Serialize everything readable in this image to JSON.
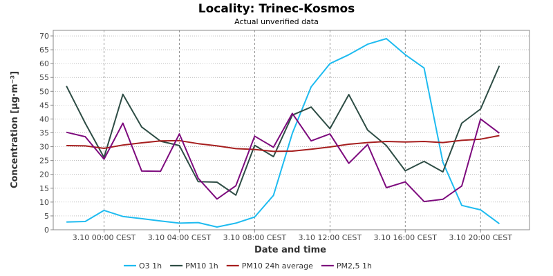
{
  "chart_data": {
    "type": "line",
    "title": "Locality: Trinec-Kosmos",
    "subtitle": "Actual unverified data",
    "xlabel": "Date and time",
    "ylabel": "Concentration [µg·m⁻³]",
    "ylim": [
      0,
      72
    ],
    "yticks": [
      0,
      5,
      10,
      15,
      20,
      25,
      30,
      35,
      40,
      45,
      50,
      55,
      60,
      65,
      70
    ],
    "x": [
      -2,
      -1,
      0,
      1,
      2,
      3,
      4,
      5,
      6,
      7,
      8,
      9,
      10,
      11,
      12,
      13,
      14,
      15,
      16,
      17,
      18,
      19,
      20,
      21,
      22
    ],
    "xlim": [
      -2.7,
      22.6
    ],
    "xticks": [
      {
        "x": 0,
        "label": "3.10 00:00 CEST"
      },
      {
        "x": 4,
        "label": "3.10 04:00 CEST"
      },
      {
        "x": 8,
        "label": "3.10 08:00 CEST"
      },
      {
        "x": 12,
        "label": "3.10 12:00 CEST"
      },
      {
        "x": 16,
        "label": "3.10 16:00 CEST"
      },
      {
        "x": 20,
        "label": "3.10 20:00 CEST"
      }
    ],
    "grid": true,
    "legend_position": "bottom",
    "series": [
      {
        "name": "O3 1h",
        "color": "#1ebbf0",
        "values": [
          2.8,
          3,
          7,
          4.8,
          4,
          3.2,
          2.4,
          2.6,
          1,
          2.4,
          4.6,
          12.4,
          34.8,
          51.6,
          60,
          63.2,
          67,
          69,
          63.2,
          58.4,
          24.4,
          8.8,
          7.2,
          2.2,
          null
        ]
      },
      {
        "name": "PM10 1h",
        "color": "#2e4d45",
        "values": [
          51.9,
          38.5,
          26.1,
          48.9,
          37.1,
          32,
          30.4,
          17.4,
          17.2,
          12.5,
          30.5,
          26.4,
          41.4,
          44.3,
          36.5,
          48.8,
          36,
          30.4,
          21.3,
          24.7,
          20.9,
          38.5,
          43.6,
          59.2,
          null
        ]
      },
      {
        "name": "PM10 24h average",
        "color": "#a61e1e",
        "values": [
          30.4,
          30.3,
          29.4,
          30.6,
          31.4,
          32.1,
          32.2,
          31.1,
          30.3,
          29.3,
          29,
          28.3,
          28.4,
          29.1,
          29.9,
          30.9,
          31.5,
          31.9,
          31.7,
          31.9,
          31.5,
          32.3,
          32.7,
          34,
          null
        ]
      },
      {
        "name": "PM2,5 1h",
        "color": "#7d0a7d",
        "values": [
          35.2,
          33.6,
          25.5,
          38.5,
          21.2,
          21.1,
          34.6,
          18.6,
          11.1,
          15.9,
          33.8,
          29.8,
          42,
          32.1,
          34.6,
          24,
          30.8,
          15.2,
          17.3,
          10.2,
          11,
          15.8,
          40,
          34.9,
          null
        ]
      }
    ]
  }
}
